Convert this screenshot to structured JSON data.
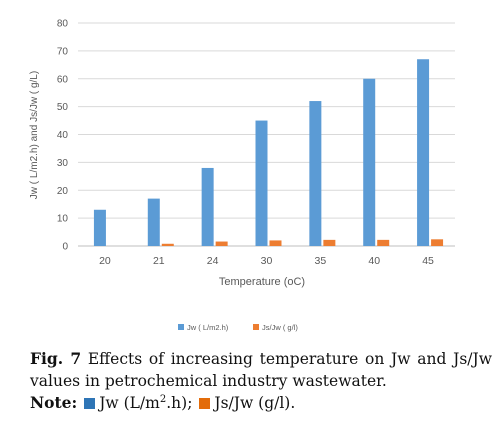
{
  "chart_data": {
    "type": "bar",
    "title": "",
    "xlabel": "Temperature (oC)",
    "ylabel": "Jw ( L/m2.h) and Js/Jw ( g/L)",
    "categories": [
      "20",
      "21",
      "24",
      "30",
      "35",
      "40",
      "45"
    ],
    "ylim": [
      0,
      80
    ],
    "yticks": [
      0,
      10,
      20,
      30,
      40,
      50,
      60,
      70,
      80
    ],
    "grid": true,
    "legend_position": "bottom",
    "series": [
      {
        "name": "Jw ( L/m2.h)",
        "color": "#5b9bd5",
        "values": [
          13,
          17,
          28,
          45,
          52,
          60,
          67
        ]
      },
      {
        "name": "Js/Jw ( g/l)",
        "color": "#ed7d31",
        "values": [
          0,
          0.8,
          1.6,
          2.0,
          2.2,
          2.2,
          2.4
        ]
      }
    ]
  },
  "caption": {
    "fig_label": "Fig. 7",
    "text": "Effects of increasing temperature on Jw and Js/Jw values in petrochemical industry wastewater.",
    "note_label": "Note:",
    "note_jw_before": "Jw (L/m",
    "note_jw_sup": "2",
    "note_jw_after": ".h);",
    "note_js": "Js/Jw (g/l).",
    "jw_color": "#2e75b6",
    "js_color": "#e36c0a"
  }
}
